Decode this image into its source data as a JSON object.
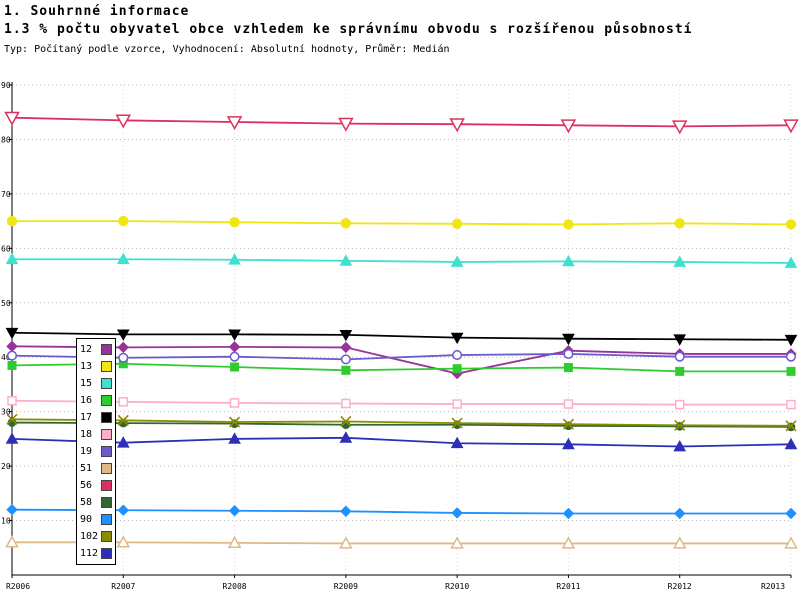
{
  "header": {
    "title": "1. Souhrnné informace",
    "subtitle": "1.3 % počtu obyvatel obce vzhledem ke správnímu obvodu s rozšířenou působností",
    "meta": "Typ: Počítaný podle vzorce, Vyhodnocení: Absolutní hodnoty, Průměr: Medián"
  },
  "chart_data": {
    "type": "line",
    "x": [
      "R2006",
      "R2007",
      "R2008",
      "R2009",
      "R2010",
      "R2011",
      "R2012",
      "R2013"
    ],
    "ylim": [
      0,
      90
    ],
    "ytick_step": 10,
    "grid": true,
    "legend_position": "left-inside",
    "series": [
      {
        "name": "12",
        "color": "#993399",
        "marker": "diamond",
        "filled": true,
        "msize": 5,
        "values": [
          42.0,
          41.8,
          41.9,
          41.8,
          37.0,
          41.2,
          40.6,
          40.6
        ]
      },
      {
        "name": "13",
        "color": "#F0E612",
        "marker": "circle",
        "filled": true,
        "msize": 5.5,
        "values": [
          65.0,
          65.0,
          64.8,
          64.6,
          64.5,
          64.4,
          64.6,
          64.4
        ]
      },
      {
        "name": "15",
        "color": "#40E0D0",
        "marker": "triangle-up",
        "filled": true,
        "msize": 5.5,
        "values": [
          58.0,
          58.0,
          57.9,
          57.7,
          57.5,
          57.6,
          57.5,
          57.3
        ]
      },
      {
        "name": "16",
        "color": "#2FCC2F",
        "marker": "square",
        "filled": true,
        "msize": 5,
        "values": [
          38.5,
          38.8,
          38.2,
          37.6,
          37.9,
          38.1,
          37.4,
          37.4
        ]
      },
      {
        "name": "17",
        "color": "#000000",
        "marker": "triangle-down",
        "filled": true,
        "msize": 5.5,
        "values": [
          44.5,
          44.2,
          44.2,
          44.1,
          43.6,
          43.4,
          43.3,
          43.2
        ]
      },
      {
        "name": "18",
        "color": "#FFAEC9",
        "marker": "square",
        "filled": false,
        "msize": 5,
        "values": [
          32.0,
          31.8,
          31.6,
          31.5,
          31.4,
          31.4,
          31.3,
          31.3
        ]
      },
      {
        "name": "19",
        "color": "#6A5ACD",
        "marker": "circle",
        "filled": false,
        "msize": 5,
        "values": [
          40.3,
          39.9,
          40.1,
          39.6,
          40.4,
          40.6,
          40.1,
          40.1
        ]
      },
      {
        "name": "51",
        "color": "#DEB887",
        "marker": "triangle-up",
        "filled": false,
        "msize": 5.5,
        "values": [
          6.0,
          6.0,
          5.9,
          5.8,
          5.8,
          5.8,
          5.8,
          5.8
        ]
      },
      {
        "name": "56",
        "color": "#DC3060",
        "marker": "triangle-down",
        "filled": false,
        "msize": 6.5,
        "values": [
          84.0,
          83.5,
          83.2,
          82.9,
          82.8,
          82.6,
          82.4,
          82.6
        ]
      },
      {
        "name": "58",
        "color": "#336633",
        "marker": "circle",
        "filled": true,
        "msize": 4.5,
        "values": [
          28.0,
          27.9,
          27.8,
          27.6,
          27.6,
          27.4,
          27.3,
          27.2
        ]
      },
      {
        "name": "90",
        "color": "#1E90FF",
        "marker": "diamond",
        "filled": true,
        "msize": 5,
        "values": [
          12.0,
          11.9,
          11.8,
          11.7,
          11.4,
          11.3,
          11.3,
          11.3
        ]
      },
      {
        "name": "102",
        "color": "#8B8B00",
        "marker": "x",
        "filled": true,
        "msize": 5,
        "values": [
          28.6,
          28.4,
          28.1,
          28.2,
          27.9,
          27.7,
          27.5,
          27.4
        ]
      },
      {
        "name": "112",
        "color": "#2E2EB8",
        "marker": "triangle-up",
        "filled": true,
        "msize": 5.5,
        "values": [
          25.0,
          24.3,
          25.0,
          25.2,
          24.2,
          24.0,
          23.6,
          24.0
        ]
      }
    ]
  }
}
